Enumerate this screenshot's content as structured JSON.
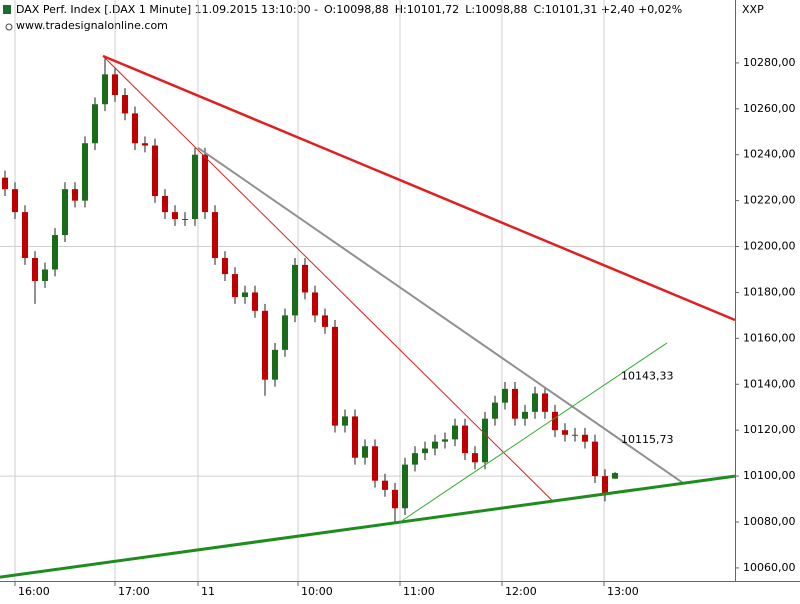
{
  "chart_data": {
    "type": "candlestick",
    "title": "DAX Perf. Index [.DAX  1 Minute] 11.09.2015 13:10:00 -",
    "ohlc_labels": [
      {
        "text": "O:10098,88",
        "color": "#cc0000"
      },
      {
        "text": "H:10101,72",
        "color": "#000000"
      },
      {
        "text": "L:10098,88",
        "color": "#000000"
      },
      {
        "text": "C:10101,31 +2,40 +0,02%",
        "color": "#2e9e2e"
      }
    ],
    "source": "www.tradesignalonline.com",
    "axis_label": "XXP",
    "up_color": "#1a6b1a",
    "down_color": "#c00000",
    "wick_color": "#222222",
    "xlim": [
      -0.5,
      73
    ],
    "xticks": [
      {
        "value": 1,
        "label": "16:00"
      },
      {
        "value": 11,
        "label": "17:00"
      },
      {
        "value": 19.3,
        "label": "11"
      },
      {
        "value": 29.3,
        "label": "10:00"
      },
      {
        "value": 39.5,
        "label": "11:00"
      },
      {
        "value": 49.7,
        "label": "12:00"
      },
      {
        "value": 59.9,
        "label": "13:00"
      }
    ],
    "ylim": [
      10054.3,
      10307.4
    ],
    "yticks": [
      {
        "value": 10060,
        "label": "10060,00"
      },
      {
        "value": 10080,
        "label": "10080,00"
      },
      {
        "value": 10100,
        "label": "10100,00"
      },
      {
        "value": 10120,
        "label": "10120,00"
      },
      {
        "value": 10140,
        "label": "10140,00"
      },
      {
        "value": 10160,
        "label": "10160,00"
      },
      {
        "value": 10180,
        "label": "10180,00"
      },
      {
        "value": 10200,
        "label": "10200,00"
      },
      {
        "value": 10220,
        "label": "10220,00"
      },
      {
        "value": 10240,
        "label": "10240,00"
      },
      {
        "value": 10260,
        "label": "10260,00"
      },
      {
        "value": 10280,
        "label": "10280,00"
      }
    ],
    "grid_lines": [
      10100,
      10200
    ],
    "open": [
      10230,
      10225,
      10215,
      10195,
      10185,
      10190,
      10205,
      10225,
      10220,
      10245,
      10262,
      10275,
      10266,
      10258,
      10245,
      10244,
      10222,
      10215,
      10212,
      10212,
      10240,
      10215,
      10195,
      10188,
      10178,
      10180,
      10172,
      10142,
      10155,
      10170,
      10192,
      10180,
      10170,
      10165,
      10122,
      10126,
      10108,
      10113,
      10098,
      10094,
      10086,
      10105,
      10110,
      10112,
      10115,
      10116,
      10122,
      10110,
      10106,
      10125,
      10132,
      10138,
      10125,
      10128,
      10136,
      10128,
      10120,
      10118,
      10118,
      10115,
      10100,
      10098.88
    ],
    "high": [
      10233,
      10228,
      10218,
      10198,
      10193,
      10208,
      10228,
      10228,
      10248,
      10265,
      10283,
      10278,
      10269,
      10261,
      10248,
      10247,
      10225,
      10218,
      10215,
      10243,
      10243,
      10218,
      10198,
      10191,
      10183,
      10183,
      10175,
      10158,
      10173,
      10195,
      10195,
      10183,
      10173,
      10168,
      10129,
      10129,
      10116,
      10116,
      10101,
      10097,
      10108,
      10113,
      10115,
      10118,
      10119,
      10125,
      10125,
      10113,
      10128,
      10135,
      10141,
      10141,
      10131,
      10139,
      10139,
      10131,
      10123,
      10121,
      10121,
      10118,
      10103,
      10101.72
    ],
    "low": [
      10222,
      10212,
      10192,
      10175,
      10182,
      10187,
      10202,
      10217,
      10217,
      10242,
      10259,
      10263,
      10255,
      10242,
      10241,
      10219,
      10212,
      10209,
      10209,
      10209,
      10212,
      10192,
      10185,
      10175,
      10175,
      10169,
      10135,
      10139,
      10152,
      10167,
      10177,
      10167,
      10162,
      10119,
      10119,
      10105,
      10105,
      10095,
      10091,
      10080,
      10083,
      10102,
      10107,
      10109,
      10112,
      10113,
      10107,
      10103,
      10103,
      10122,
      10129,
      10122,
      10122,
      10125,
      10125,
      10117,
      10115,
      10115,
      10112,
      10097,
      10089,
      10098.88
    ],
    "close": [
      10225,
      10215,
      10195,
      10185,
      10190,
      10205,
      10225,
      10220,
      10245,
      10262,
      10275,
      10266,
      10258,
      10245,
      10244,
      10222,
      10215,
      10212,
      10212,
      10240,
      10215,
      10195,
      10188,
      10178,
      10180,
      10172,
      10142,
      10155,
      10170,
      10192,
      10180,
      10170,
      10165,
      10122,
      10126,
      10108,
      10113,
      10098,
      10094,
      10086,
      10105,
      10110,
      10112,
      10115,
      10116,
      10122,
      10110,
      10106,
      10125,
      10132,
      10138,
      10125,
      10128,
      10136,
      10128,
      10120,
      10118,
      10118,
      10115,
      10100,
      10092,
      10101.31
    ],
    "trend_lines": [
      {
        "color": "#e02020",
        "width": 2.5,
        "x": [
          9.8,
          73
        ],
        "y": [
          10283,
          10168
        ]
      },
      {
        "color": "#e02020",
        "width": 1,
        "x": [
          9.8,
          54.8
        ],
        "y": [
          10283,
          10089
        ]
      },
      {
        "color": "#909090",
        "width": 2,
        "x": [
          19.3,
          67.8
        ],
        "y": [
          10243,
          10097
        ]
      },
      {
        "color": "#1e8c1e",
        "width": 3,
        "x": [
          -0.5,
          73
        ],
        "y": [
          10056,
          10100
        ]
      },
      {
        "color": "#2fae2f",
        "width": 1,
        "x": [
          39.5,
          66.2
        ],
        "y": [
          10080,
          10158
        ]
      }
    ],
    "line_labels": [
      {
        "text": "10143,33",
        "value": 10143.33,
        "color": "#2e8b2e"
      },
      {
        "text": "10115,73",
        "value": 10115.73,
        "color": "#909090"
      }
    ]
  }
}
